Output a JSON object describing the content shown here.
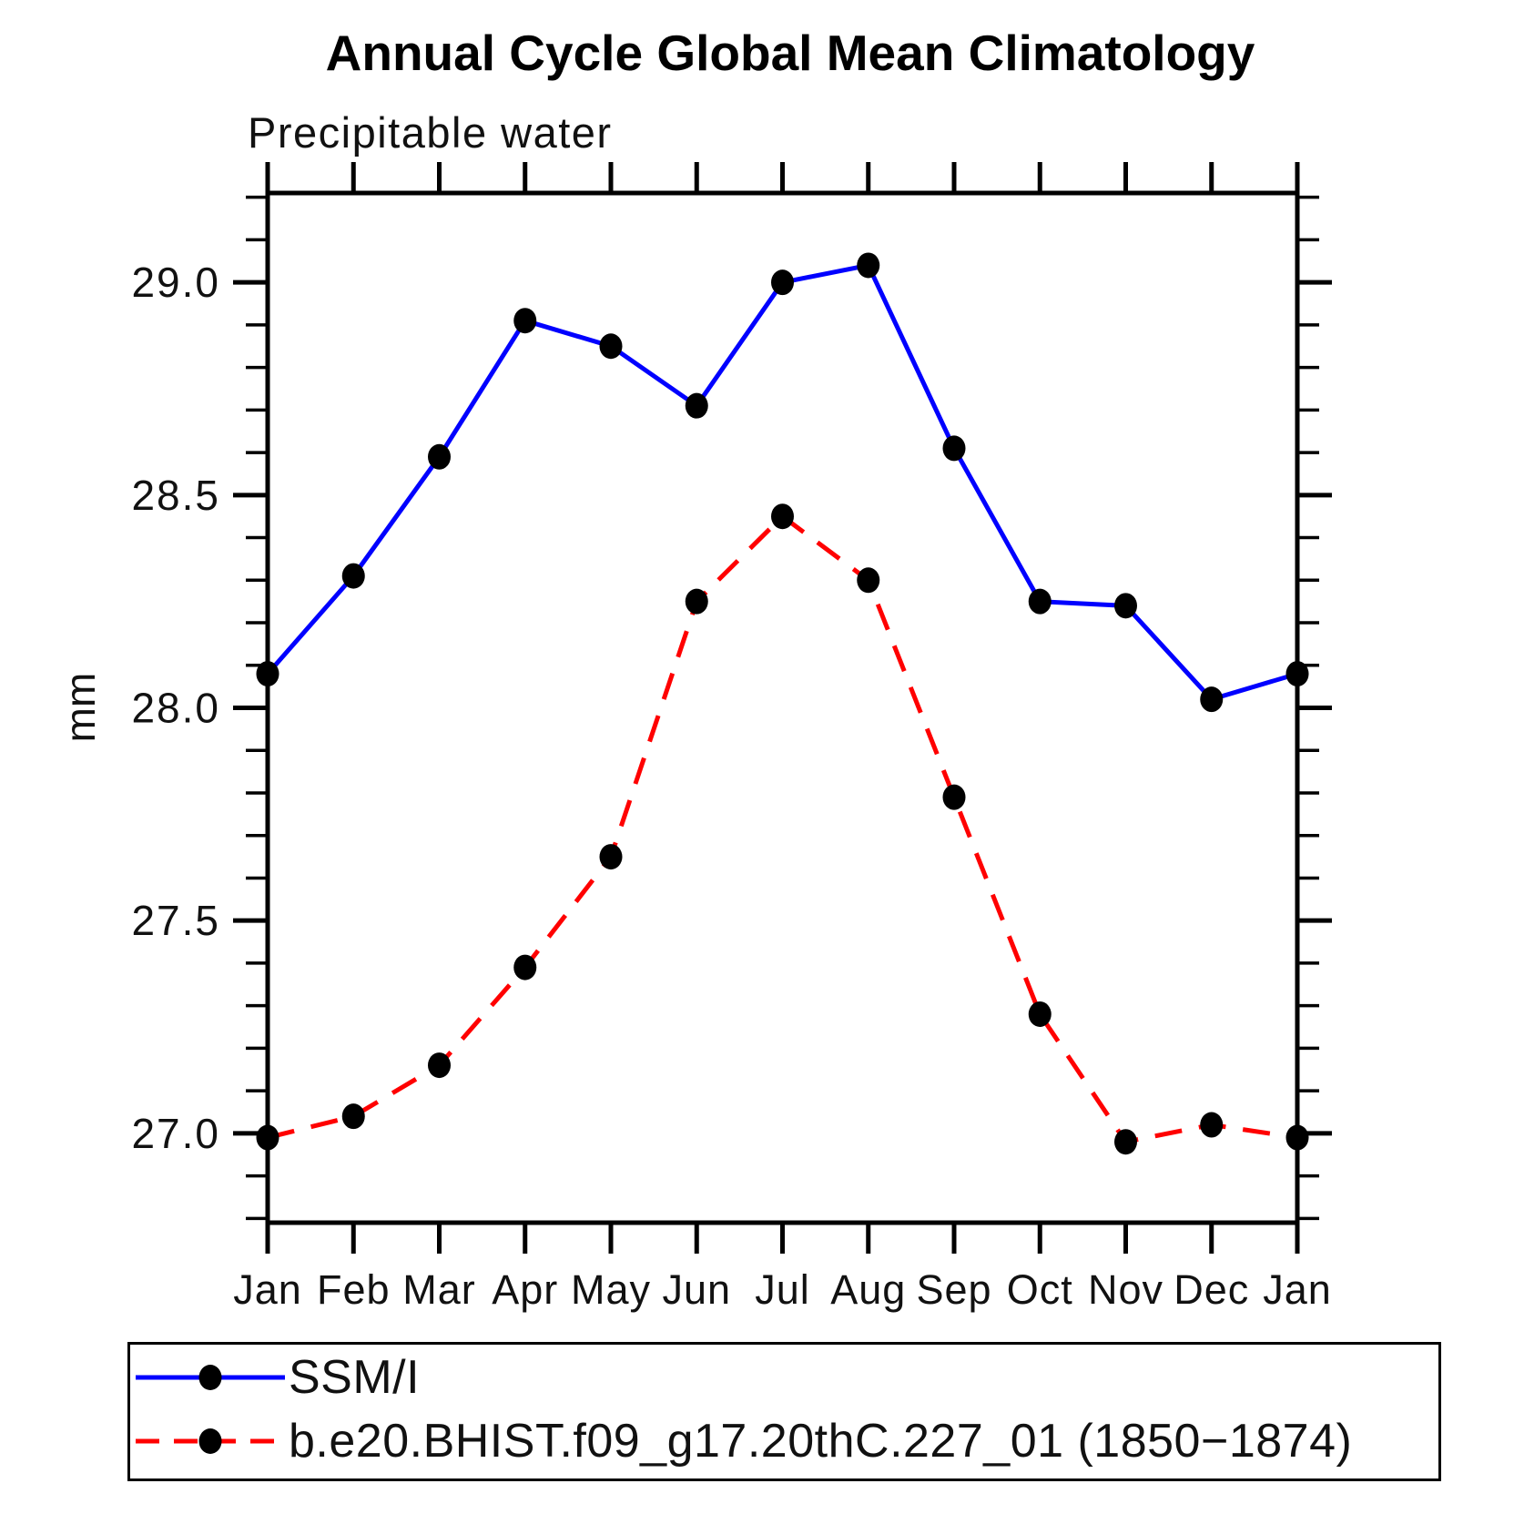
{
  "chart_data": {
    "type": "line",
    "title": "Annual Cycle Global Mean Climatology",
    "subtitle": "Precipitable water",
    "ylabel": "mm",
    "xlabel": "",
    "categories": [
      "Jan",
      "Feb",
      "Mar",
      "Apr",
      "May",
      "Jun",
      "Jul",
      "Aug",
      "Sep",
      "Oct",
      "Nov",
      "Dec",
      "Jan"
    ],
    "y_ticks": [
      27.0,
      27.5,
      28.0,
      28.5,
      29.0
    ],
    "y_minor_step": 0.1,
    "ylim": [
      26.79,
      29.21
    ],
    "grid": false,
    "legend_position": "bottom-left",
    "axis_color": "#000000",
    "marker_color": "#000000",
    "series": [
      {
        "name": "SSM/I",
        "color": "#0000ff",
        "style": "solid",
        "marker": "circle",
        "values": [
          28.08,
          28.31,
          28.59,
          28.91,
          28.85,
          28.71,
          29.0,
          29.04,
          28.61,
          28.25,
          28.24,
          28.02,
          28.08
        ]
      },
      {
        "name": "b.e20.BHIST.f09_g17.20thC.227_01 (1850−1874)",
        "color": "#ff0000",
        "style": "dashed",
        "marker": "circle",
        "values": [
          26.99,
          27.04,
          27.16,
          27.39,
          27.65,
          28.25,
          28.45,
          28.3,
          27.79,
          27.28,
          26.98,
          27.02,
          26.99
        ]
      }
    ]
  }
}
